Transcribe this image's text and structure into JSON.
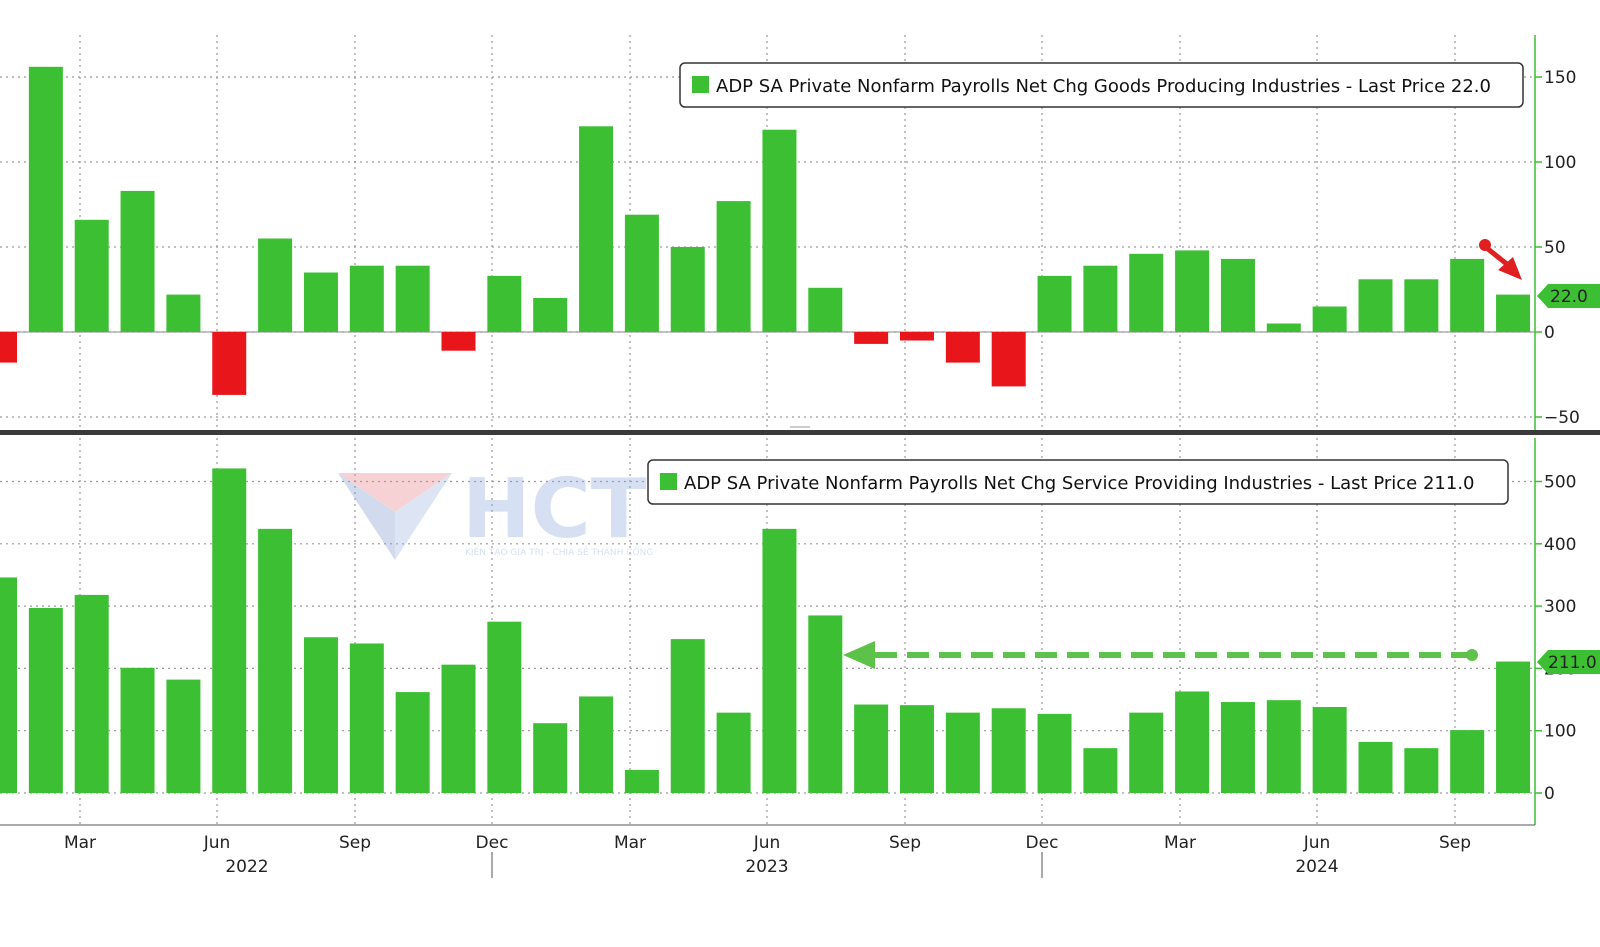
{
  "chart_data": [
    {
      "type": "bar",
      "legend": "ADP SA Private Nonfarm Payrolls Net Chg Goods Producing Industries - Last Price 22.0",
      "last_value_label": "22.0",
      "values": [
        -18,
        156,
        66,
        83,
        22,
        -37,
        55,
        35,
        39,
        39,
        -11,
        33,
        20,
        121,
        69,
        50,
        77,
        119,
        26,
        -7,
        -5,
        -18,
        -32,
        33,
        39,
        46,
        48,
        43,
        5,
        15,
        31,
        31,
        43,
        22
      ],
      "ylim": [
        -50,
        170
      ],
      "yticks": [
        -50,
        0,
        50,
        100,
        150
      ],
      "positive_color": "#3cbf33",
      "negative_color": "#e8151b"
    },
    {
      "type": "bar",
      "legend": "ADP SA Private Nonfarm Payrolls Net Chg Service Providing Industries - Last Price 211.0",
      "last_value_label": "211.0",
      "values": [
        346,
        297,
        318,
        201,
        182,
        521,
        424,
        250,
        240,
        162,
        206,
        275,
        112,
        155,
        37,
        247,
        129,
        424,
        285,
        142,
        141,
        129,
        136,
        127,
        72,
        129,
        163,
        146,
        149,
        138,
        82,
        72,
        101,
        211
      ],
      "ylim": [
        -50,
        560
      ],
      "yticks": [
        0,
        100,
        200,
        300,
        400,
        500
      ],
      "positive_color": "#3cbf33"
    }
  ],
  "x_axis": {
    "month_labels": [
      "Mar",
      "Jun",
      "Sep",
      "Dec",
      "Mar",
      "Jun",
      "Sep",
      "Dec",
      "Mar",
      "Jun",
      "Sep"
    ],
    "year_labels": [
      "2022",
      "2023",
      "2024"
    ]
  },
  "watermark": {
    "brand": "HCT",
    "tagline": "KIẾN TẠO GIÁ TRỊ - CHIA SẺ THÀNH CÔNG"
  },
  "annotation_colors": {
    "top_arrow": "#e02020",
    "bottom_arrow": "#5cc24a"
  }
}
